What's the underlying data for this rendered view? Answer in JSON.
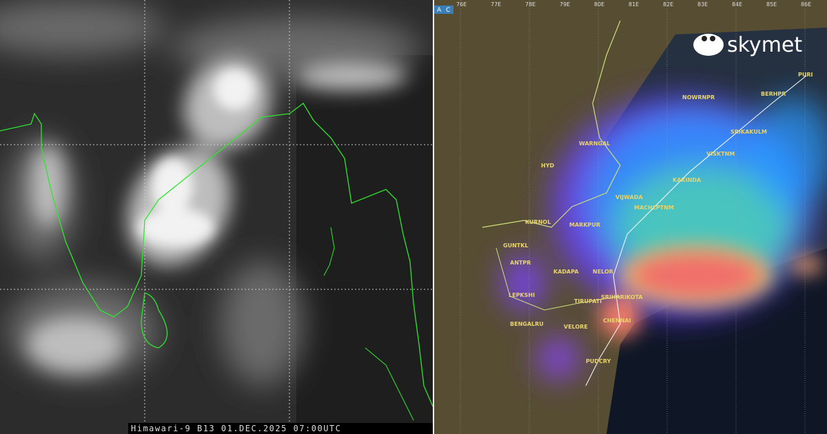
{
  "left_panel": {
    "caption": "Himawari-9 B13 01.DEC.2025 07:00UTC"
  },
  "right_panel": {
    "buttons": [
      "A",
      "C"
    ],
    "lon_labels": [
      "76E",
      "77E",
      "78E",
      "79E",
      "80E",
      "81E",
      "82E",
      "83E",
      "84E",
      "85E",
      "86E"
    ],
    "city_labels": [
      "HYD",
      "WARNGAL",
      "NOWRNPR",
      "BERHPR",
      "PURI",
      "SRIKAKULM",
      "VISKTNM",
      "KAKINDA",
      "VIJWADA",
      "MACHLPTNM",
      "KURNOL",
      "MARKPUR",
      "GUNTKL",
      "ANTPR",
      "KADAPA",
      "NELOR",
      "SRIHARIKOTA",
      "TIRUPATI",
      "LEPKSHI",
      "BENGALRU",
      "VELORE",
      "CHENNAI",
      "PUDCRY"
    ]
  },
  "logo": {
    "text": "skymet"
  }
}
